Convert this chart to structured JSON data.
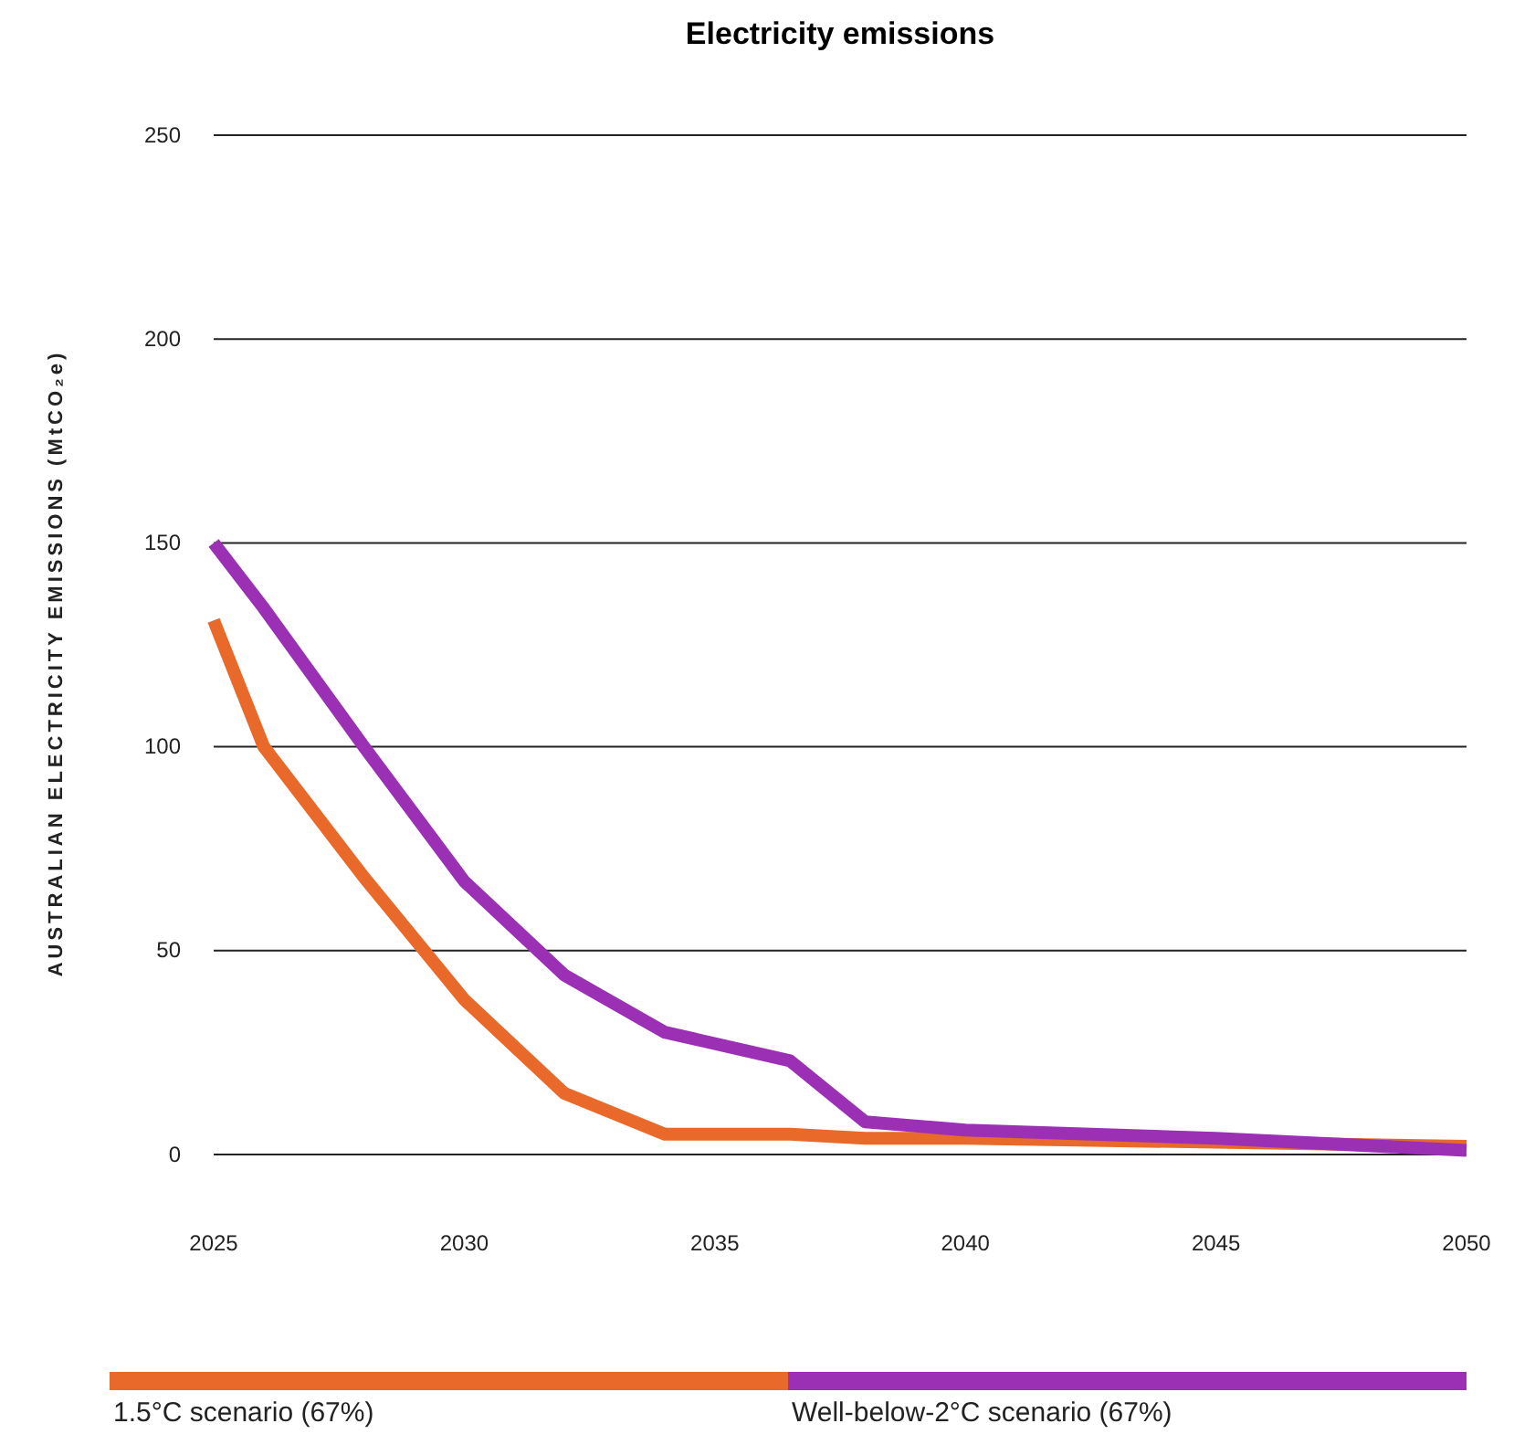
{
  "chart_data": {
    "type": "line",
    "title": "Electricity emissions",
    "ylabel": "AUSTRALIAN ELECTRICITY EMISSIONS (MtCO₂e)",
    "xlim": [
      2025,
      2050
    ],
    "xticks": [
      2025,
      2030,
      2035,
      2040,
      2045,
      2050
    ],
    "ylim": [
      0,
      250
    ],
    "yticks": [
      0,
      50,
      100,
      150,
      200,
      250
    ],
    "grid": "y",
    "legend": "bottom",
    "series": [
      {
        "name": "1.5°C scenario (67%)",
        "color": "#e8692a",
        "x": [
          2025,
          2026,
          2028,
          2030,
          2032,
          2034,
          2036.5,
          2038,
          2040,
          2045,
          2050
        ],
        "values": [
          131,
          100,
          68,
          38,
          15,
          5,
          5,
          4,
          4,
          3,
          2
        ]
      },
      {
        "name": "Well-below-2°C scenario (67%)",
        "color": "#9b30b5",
        "x": [
          2025,
          2026,
          2028,
          2030,
          2032,
          2034,
          2036.5,
          2038,
          2040,
          2045,
          2050
        ],
        "values": [
          150,
          134,
          100,
          67,
          44,
          30,
          23,
          8,
          6,
          4,
          1
        ]
      }
    ]
  }
}
